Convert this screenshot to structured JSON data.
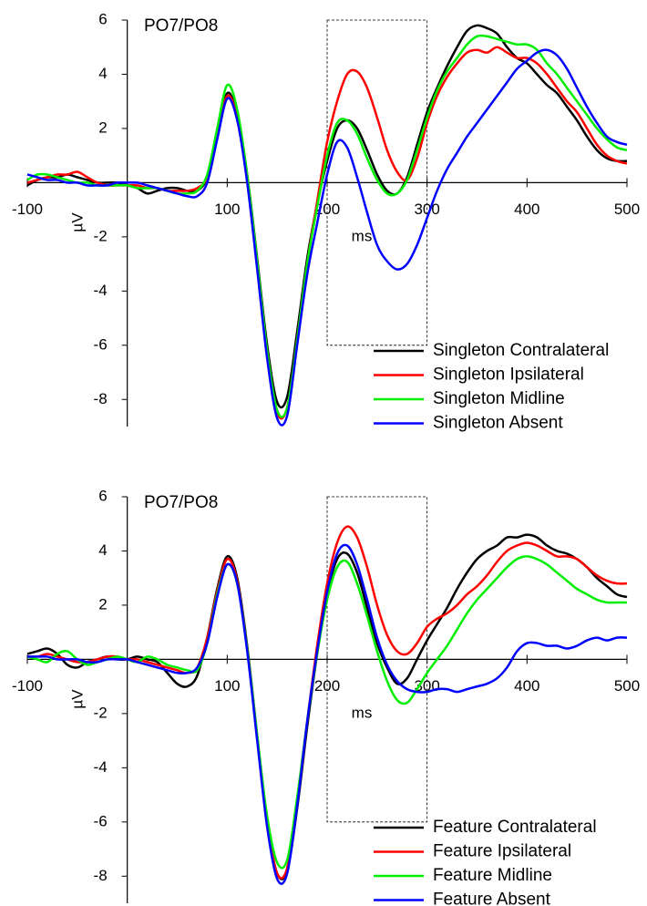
{
  "chart_data": [
    {
      "type": "line",
      "annotation": "PO7/PO8",
      "x_label": "ms",
      "y_label": "µV",
      "xlim": [
        -100,
        500
      ],
      "ylim": [
        -9,
        6
      ],
      "xticks": [
        -100,
        100,
        200,
        300,
        400,
        500
      ],
      "yticks": [
        -8,
        -6,
        -4,
        -2,
        2,
        4,
        6
      ],
      "box": {
        "xlim": [
          200,
          300
        ],
        "ylim": [
          -6,
          6
        ]
      },
      "x": [
        -100,
        -90,
        -80,
        -70,
        -60,
        -50,
        -40,
        -30,
        -20,
        -10,
        0,
        10,
        20,
        30,
        40,
        50,
        60,
        70,
        80,
        90,
        100,
        110,
        120,
        130,
        140,
        150,
        160,
        170,
        180,
        190,
        200,
        210,
        220,
        230,
        240,
        250,
        260,
        270,
        280,
        290,
        300,
        310,
        320,
        330,
        340,
        350,
        360,
        370,
        380,
        390,
        400,
        410,
        420,
        430,
        440,
        450,
        460,
        470,
        480,
        490,
        500
      ],
      "series": [
        {
          "name": "Singleton Contralateral",
          "color": "#000000",
          "values": [
            -0.1,
            0.1,
            0.2,
            0.2,
            0.3,
            0.2,
            0.1,
            0.0,
            0.0,
            0.0,
            -0.1,
            -0.2,
            -0.4,
            -0.3,
            -0.2,
            -0.2,
            -0.3,
            -0.3,
            0.2,
            1.8,
            3.3,
            2.5,
            0.3,
            -2.8,
            -6.0,
            -8.1,
            -7.9,
            -5.5,
            -2.8,
            -0.8,
            0.8,
            2.0,
            2.3,
            2.0,
            1.2,
            0.3,
            -0.3,
            -0.4,
            0.2,
            1.4,
            2.6,
            3.5,
            4.3,
            5.0,
            5.6,
            5.8,
            5.7,
            5.5,
            5.0,
            4.6,
            4.4,
            4.0,
            3.6,
            3.3,
            2.8,
            2.3,
            1.7,
            1.2,
            0.9,
            0.8,
            0.8
          ]
        },
        {
          "name": "Singleton Ipsilateral",
          "color": "#ff0000",
          "values": [
            0.0,
            0.1,
            0.2,
            0.3,
            0.3,
            0.4,
            0.2,
            0.0,
            -0.1,
            -0.1,
            -0.1,
            -0.1,
            -0.2,
            -0.2,
            -0.3,
            -0.3,
            -0.3,
            -0.2,
            0.2,
            1.7,
            3.2,
            2.4,
            0.1,
            -3.0,
            -6.3,
            -8.5,
            -8.3,
            -5.8,
            -3.0,
            -0.7,
            1.5,
            3.0,
            4.0,
            4.1,
            3.5,
            2.4,
            1.2,
            0.4,
            0.1,
            0.9,
            2.2,
            3.2,
            3.9,
            4.4,
            4.8,
            4.9,
            4.8,
            5.0,
            4.8,
            4.6,
            4.6,
            4.4,
            4.0,
            3.5,
            3.0,
            2.6,
            2.0,
            1.4,
            1.0,
            0.8,
            0.7
          ]
        },
        {
          "name": "Singleton Midline",
          "color": "#00ee00",
          "values": [
            0.1,
            0.3,
            0.3,
            0.2,
            0.1,
            0.0,
            0.0,
            -0.1,
            -0.1,
            -0.1,
            -0.1,
            -0.2,
            -0.2,
            -0.2,
            -0.3,
            -0.4,
            -0.4,
            -0.3,
            0.3,
            2.0,
            3.6,
            2.7,
            0.3,
            -2.9,
            -6.2,
            -8.4,
            -8.3,
            -5.8,
            -3.0,
            -0.9,
            1.0,
            2.2,
            2.3,
            1.8,
            0.9,
            0.1,
            -0.4,
            -0.4,
            0.1,
            1.2,
            2.4,
            3.4,
            4.1,
            4.6,
            5.1,
            5.4,
            5.4,
            5.3,
            5.2,
            5.1,
            5.1,
            4.9,
            4.4,
            4.0,
            3.5,
            3.0,
            2.5,
            2.0,
            1.6,
            1.3,
            1.2
          ]
        },
        {
          "name": "Singleton Absent",
          "color": "#0000ff",
          "values": [
            0.3,
            0.2,
            0.1,
            0.1,
            0.0,
            0.0,
            -0.1,
            -0.1,
            -0.1,
            0.0,
            0.0,
            0.0,
            -0.1,
            -0.2,
            -0.3,
            -0.4,
            -0.5,
            -0.5,
            0.0,
            1.6,
            3.1,
            2.3,
            0.0,
            -3.2,
            -6.5,
            -8.7,
            -8.6,
            -6.0,
            -3.4,
            -1.5,
            0.3,
            1.5,
            1.3,
            0.2,
            -1.1,
            -2.3,
            -2.9,
            -3.2,
            -3.0,
            -2.3,
            -1.3,
            -0.3,
            0.5,
            1.1,
            1.7,
            2.2,
            2.7,
            3.2,
            3.7,
            4.2,
            4.5,
            4.8,
            4.9,
            4.7,
            4.2,
            3.5,
            2.8,
            2.2,
            1.7,
            1.5,
            1.4
          ]
        }
      ]
    },
    {
      "type": "line",
      "annotation": "PO7/PO8",
      "x_label": "ms",
      "y_label": "µV",
      "xlim": [
        -100,
        500
      ],
      "ylim": [
        -9,
        6
      ],
      "xticks": [
        -100,
        100,
        200,
        300,
        400,
        500
      ],
      "yticks": [
        -8,
        -6,
        -4,
        -2,
        2,
        4,
        6
      ],
      "box": {
        "xlim": [
          200,
          300
        ],
        "ylim": [
          -6,
          6
        ]
      },
      "x": [
        -100,
        -90,
        -80,
        -70,
        -60,
        -50,
        -40,
        -30,
        -20,
        -10,
        0,
        10,
        20,
        30,
        40,
        50,
        60,
        70,
        80,
        90,
        100,
        110,
        120,
        130,
        140,
        150,
        160,
        170,
        180,
        190,
        200,
        210,
        220,
        230,
        240,
        250,
        260,
        270,
        280,
        290,
        300,
        310,
        320,
        330,
        340,
        350,
        360,
        370,
        380,
        390,
        400,
        410,
        420,
        430,
        440,
        450,
        460,
        470,
        480,
        490,
        500
      ],
      "series": [
        {
          "name": "Feature Contralateral",
          "color": "#000000",
          "values": [
            0.2,
            0.3,
            0.4,
            0.2,
            -0.2,
            -0.3,
            -0.1,
            0.0,
            0.1,
            0.0,
            0.0,
            0.1,
            0.0,
            -0.1,
            -0.5,
            -0.9,
            -1.0,
            -0.6,
            0.8,
            2.6,
            3.8,
            3.0,
            0.5,
            -2.8,
            -6.0,
            -7.9,
            -7.8,
            -5.5,
            -2.5,
            0.2,
            2.4,
            3.7,
            3.9,
            3.2,
            1.9,
            0.6,
            -0.3,
            -0.9,
            -0.7,
            0.0,
            0.7,
            1.3,
            1.9,
            2.6,
            3.2,
            3.7,
            4.0,
            4.2,
            4.5,
            4.5,
            4.6,
            4.5,
            4.2,
            4.0,
            3.9,
            3.7,
            3.4,
            3.0,
            2.7,
            2.4,
            2.3
          ]
        },
        {
          "name": "Feature Ipsilateral",
          "color": "#ff0000",
          "values": [
            0.1,
            0.1,
            0.2,
            0.1,
            0.0,
            -0.1,
            -0.1,
            0.0,
            0.1,
            0.1,
            0.0,
            0.0,
            -0.1,
            -0.2,
            -0.3,
            -0.4,
            -0.5,
            -0.3,
            0.8,
            2.5,
            3.7,
            2.9,
            0.4,
            -2.9,
            -6.0,
            -7.9,
            -7.7,
            -5.3,
            -2.3,
            0.5,
            2.8,
            4.3,
            4.9,
            4.5,
            3.4,
            2.0,
            0.9,
            0.3,
            0.2,
            0.6,
            1.2,
            1.5,
            1.7,
            2.0,
            2.4,
            2.7,
            3.1,
            3.6,
            4.0,
            4.2,
            4.3,
            4.2,
            4.0,
            3.8,
            3.8,
            3.7,
            3.4,
            3.1,
            2.9,
            2.8,
            2.8
          ]
        },
        {
          "name": "Feature Midline",
          "color": "#00ee00",
          "values": [
            0.1,
            0.0,
            -0.1,
            0.2,
            0.3,
            0.0,
            -0.2,
            -0.1,
            0.0,
            0.1,
            0.0,
            -0.1,
            0.1,
            0.0,
            -0.2,
            -0.3,
            -0.4,
            -0.4,
            0.6,
            2.4,
            3.5,
            2.8,
            0.4,
            -2.8,
            -5.8,
            -7.5,
            -7.4,
            -5.1,
            -2.3,
            0.2,
            2.2,
            3.4,
            3.6,
            2.8,
            1.6,
            0.3,
            -0.8,
            -1.5,
            -1.6,
            -1.1,
            -0.5,
            0.0,
            0.5,
            1.1,
            1.7,
            2.2,
            2.6,
            3.0,
            3.4,
            3.7,
            3.8,
            3.7,
            3.5,
            3.2,
            2.9,
            2.6,
            2.4,
            2.2,
            2.1,
            2.1,
            2.1
          ]
        },
        {
          "name": "Feature Absent",
          "color": "#0000ff",
          "values": [
            0.1,
            0.1,
            0.1,
            0.0,
            0.0,
            0.0,
            -0.1,
            -0.1,
            0.0,
            0.0,
            0.0,
            -0.1,
            -0.2,
            -0.3,
            -0.4,
            -0.5,
            -0.5,
            -0.3,
            0.6,
            2.3,
            3.5,
            2.8,
            0.3,
            -3.0,
            -6.2,
            -8.1,
            -7.9,
            -5.4,
            -2.3,
            0.3,
            2.5,
            3.9,
            4.2,
            3.5,
            2.2,
            0.8,
            -0.2,
            -0.8,
            -1.1,
            -1.2,
            -1.2,
            -1.1,
            -1.1,
            -1.2,
            -1.1,
            -1.0,
            -0.9,
            -0.7,
            -0.3,
            0.3,
            0.6,
            0.6,
            0.5,
            0.5,
            0.4,
            0.5,
            0.7,
            0.8,
            0.7,
            0.8,
            0.8
          ]
        }
      ]
    }
  ]
}
